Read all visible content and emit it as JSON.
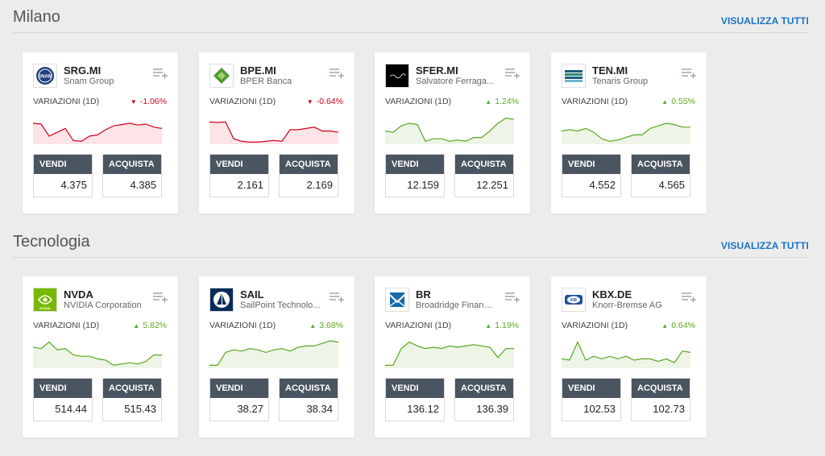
{
  "sections": [
    {
      "title": "Milano",
      "view_all": "VISUALIZZA TUTTI",
      "cards": [
        {
          "symbol": "SRG.MI",
          "name": "Snam Group",
          "var_label": "VARIAZIONI (1D)",
          "change": "-1.06%",
          "dir": "down",
          "sell_label": "VENDI",
          "sell": "4.375",
          "buy_label": "ACQUISTA",
          "buy": "4.385",
          "logo_icon": "snam-logo-icon",
          "logo_text": "SNAM",
          "spark": [
            0.25,
            0.28,
            0.75,
            0.6,
            0.45,
            0.92,
            0.95,
            0.75,
            0.7,
            0.5,
            0.35,
            0.3,
            0.25,
            0.32,
            0.28,
            0.4,
            0.45
          ]
        },
        {
          "symbol": "BPE.MI",
          "name": "BPER Banca",
          "var_label": "VARIAZIONI (1D)",
          "change": "-0.64%",
          "dir": "down",
          "sell_label": "VENDI",
          "sell": "2.161",
          "buy_label": "ACQUISTA",
          "buy": "2.169",
          "logo_icon": "bper-logo-icon",
          "spark": [
            0.2,
            0.22,
            0.2,
            0.85,
            0.95,
            0.98,
            0.98,
            0.95,
            0.92,
            0.95,
            0.5,
            0.5,
            0.45,
            0.4,
            0.55,
            0.55,
            0.6
          ]
        },
        {
          "symbol": "SFER.MI",
          "name": "Salvatore Ferraga...",
          "var_label": "VARIAZIONI (1D)",
          "change": "1.24%",
          "dir": "up",
          "sell_label": "VENDI",
          "sell": "12.159",
          "buy_label": "ACQUISTA",
          "buy": "12.251",
          "logo_icon": "ferragamo-logo-icon",
          "spark": [
            0.55,
            0.6,
            0.35,
            0.25,
            0.3,
            0.95,
            0.85,
            0.85,
            0.95,
            0.9,
            0.95,
            0.8,
            0.8,
            0.55,
            0.25,
            0.05,
            0.1
          ]
        },
        {
          "symbol": "TEN.MI",
          "name": "Tenaris Group",
          "var_label": "VARIAZIONI (1D)",
          "change": "0.55%",
          "dir": "up",
          "sell_label": "VENDI",
          "sell": "4.552",
          "buy_label": "ACQUISTA",
          "buy": "4.565",
          "logo_icon": "tenaris-logo-icon",
          "spark": [
            0.55,
            0.5,
            0.55,
            0.45,
            0.6,
            0.85,
            0.95,
            0.9,
            0.8,
            0.7,
            0.7,
            0.45,
            0.35,
            0.25,
            0.3,
            0.4,
            0.4
          ]
        }
      ]
    },
    {
      "title": "Tecnologia",
      "view_all": "VISUALIZZA TUTTI",
      "cards": [
        {
          "symbol": "NVDA",
          "name": "NVIDIA Corporation",
          "var_label": "VARIAZIONI (1D)",
          "change": "5.82%",
          "dir": "up",
          "sell_label": "VENDI",
          "sell": "514.44",
          "buy_label": "ACQUISTA",
          "buy": "515.43",
          "logo_icon": "nvidia-logo-icon",
          "logo_text": "NVIDIA",
          "spark": [
            0.25,
            0.3,
            0.05,
            0.35,
            0.3,
            0.55,
            0.6,
            0.6,
            0.7,
            0.75,
            0.95,
            0.9,
            0.85,
            0.9,
            0.8,
            0.55,
            0.55
          ]
        },
        {
          "symbol": "SAIL",
          "name": "SailPoint Technolo...",
          "var_label": "VARIAZIONI (1D)",
          "change": "3.68%",
          "dir": "up",
          "sell_label": "VENDI",
          "sell": "38.27",
          "buy_label": "ACQUISTA",
          "buy": "38.34",
          "logo_icon": "sailpoint-logo-icon",
          "spark": [
            0.95,
            0.95,
            0.45,
            0.35,
            0.4,
            0.3,
            0.35,
            0.45,
            0.35,
            0.3,
            0.4,
            0.25,
            0.2,
            0.2,
            0.1,
            0.0,
            0.05
          ]
        },
        {
          "symbol": "BR",
          "name": "Broadridge Financi...",
          "var_label": "VARIAZIONI (1D)",
          "change": "1.19%",
          "dir": "up",
          "sell_label": "VENDI",
          "sell": "136.12",
          "buy_label": "ACQUISTA",
          "buy": "136.39",
          "logo_icon": "broadridge-logo-icon",
          "spark": [
            0.95,
            0.95,
            0.3,
            0.05,
            0.2,
            0.3,
            0.25,
            0.3,
            0.2,
            0.25,
            0.2,
            0.15,
            0.2,
            0.25,
            0.65,
            0.3,
            0.3
          ]
        },
        {
          "symbol": "KBX.DE",
          "name": "Knorr-Bremse AG",
          "var_label": "VARIAZIONI (1D)",
          "change": "0.64%",
          "dir": "up",
          "sell_label": "VENDI",
          "sell": "102.53",
          "buy_label": "ACQUISTA",
          "buy": "102.73",
          "logo_icon": "knorr-bremse-logo-icon",
          "logo_text": "KB",
          "spark": [
            0.7,
            0.75,
            0.05,
            0.75,
            0.6,
            0.7,
            0.6,
            0.7,
            0.6,
            0.75,
            0.7,
            0.7,
            0.8,
            0.7,
            0.85,
            0.4,
            0.45
          ]
        }
      ]
    }
  ],
  "colors": {
    "down": "#d0021b",
    "up": "#5aa724",
    "button_header": "#4a5561",
    "link": "#1a73c7",
    "background": "#ececec"
  }
}
